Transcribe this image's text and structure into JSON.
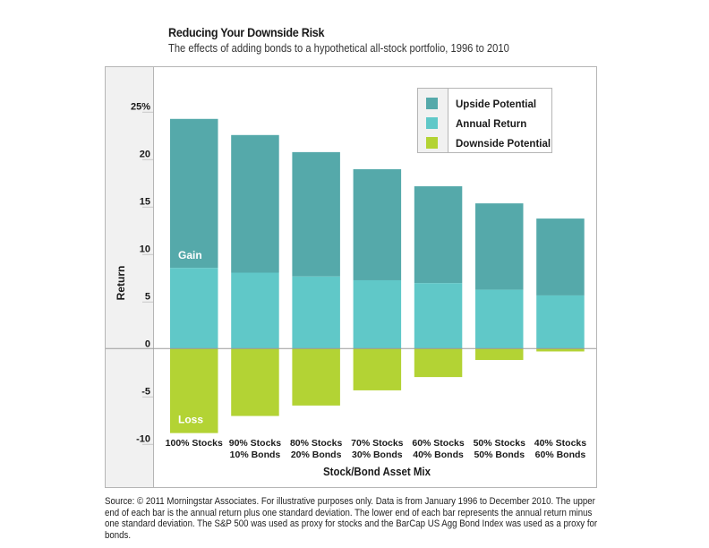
{
  "header": {
    "title": "Reducing Your Downside Risk",
    "subtitle": "The effects of adding bonds to a hypothetical all-stock portfolio, 1996 to 2010"
  },
  "chart_data": {
    "type": "bar",
    "title": "Reducing Your Downside Risk",
    "subtitle": "The effects of adding bonds to a hypothetical all-stock portfolio, 1996 to 2010",
    "xlabel": "Stock/Bond Asset Mix",
    "ylabel": "Return",
    "ylim": [
      -10,
      25
    ],
    "yticks": [
      -10,
      -5,
      0,
      5,
      10,
      15,
      20,
      25
    ],
    "ytick_labels": [
      "-10",
      "-5",
      "0",
      "5",
      "10",
      "15",
      "20",
      "25%"
    ],
    "grid": false,
    "legend_position": "top-right",
    "categories": [
      [
        "100% Stocks"
      ],
      [
        "90% Stocks",
        "10% Bonds"
      ],
      [
        "80% Stocks",
        "20% Bonds"
      ],
      [
        "70% Stocks",
        "30% Bonds"
      ],
      [
        "60% Stocks",
        "40% Bonds"
      ],
      [
        "50% Stocks",
        "50% Bonds"
      ],
      [
        "40% Stocks",
        "60% Bonds"
      ]
    ],
    "series": [
      {
        "name": "Upside Potential",
        "color": "#55a9aa",
        "values": [
          24.2,
          22.5,
          20.7,
          18.9,
          17.1,
          15.3,
          13.7
        ]
      },
      {
        "name": "Annual Return",
        "color": "#60c8c8",
        "values": [
          8.5,
          8.0,
          7.6,
          7.2,
          6.9,
          6.2,
          5.6
        ]
      },
      {
        "name": "Downside Potential",
        "color": "#b3d334",
        "values": [
          -8.9,
          -7.1,
          -6.0,
          -4.4,
          -3.0,
          -1.2,
          -0.3
        ]
      }
    ],
    "annotations": [
      {
        "text": "Gain",
        "bar": 0,
        "series": "Upside Potential"
      },
      {
        "text": "Loss",
        "bar": 0,
        "series": "Downside Potential"
      }
    ]
  },
  "footer": {
    "source": "Source: © 2011 Morningstar Associates. For illustrative purposes only. Data is from January 1996 to December 2010. The upper end of each bar is the annual return plus one standard deviation. The lower end of each bar represents the annual return minus one standard deviation. The S&P 500 was used as proxy for stocks and the BarCap US Agg Bond Index was used as a proxy for bonds."
  }
}
